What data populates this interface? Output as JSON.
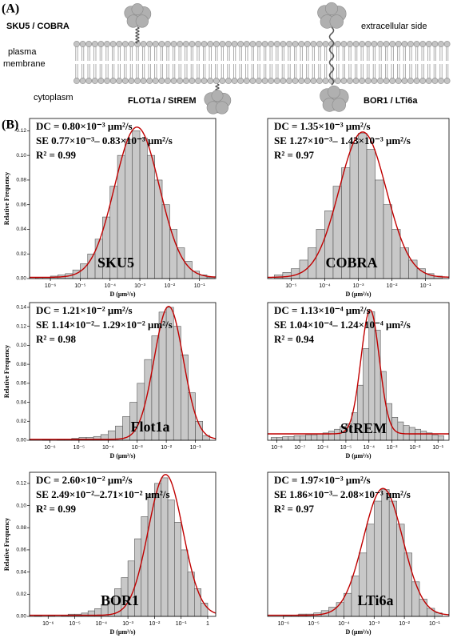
{
  "diagram": {
    "panel_label": "(A)",
    "protein_1": "SKU5 / COBRA",
    "outside": "extracellular side",
    "membrane": [
      "plasma",
      "membrane"
    ],
    "inside": "cytoplasm",
    "protein_2": "FLOT1a / StREM",
    "protein_3": "BOR1 / LTi6a"
  },
  "panel_b_label": "(B)",
  "chart_data": [
    {
      "type": "histogram",
      "label": "SKU5",
      "annotations": [
        "DC = 0.80×10⁻³ μm²/s",
        "SE 0.77×10⁻³– 0.83×10⁻³ μm²/s",
        "R² = 0.99"
      ],
      "x_label": "D (μm²/s)",
      "y_label": "Relative Frequency",
      "xscale": "log",
      "color": "#c8c8c8",
      "bins": [
        3.16e-07,
        5.62e-07,
        1e-06,
        1.78e-06,
        3.16e-06,
        5.62e-06,
        1e-05,
        1.78e-05,
        3.16e-05,
        5.62e-05,
        0.0001,
        0.000178,
        0.000316,
        0.000562,
        0.001,
        0.00178,
        0.00316,
        0.00562,
        0.01,
        0.0178,
        0.0316,
        0.0562,
        0.1,
        0.178,
        0.316
      ],
      "values": [
        0.001,
        0.001,
        0.002,
        0.003,
        0.004,
        0.007,
        0.012,
        0.02,
        0.032,
        0.05,
        0.075,
        0.1,
        0.113,
        0.12,
        0.114,
        0.1,
        0.08,
        0.06,
        0.04,
        0.025,
        0.014,
        0.006,
        0.003,
        0.001
      ],
      "fit_curve": {
        "color": "#c00000",
        "peak": 0.122,
        "center": 0.0008,
        "width": 0.75,
        "baseline": 0.001
      },
      "xlim": [
        2e-07,
        0.35
      ],
      "ylim": [
        0,
        0.13
      ],
      "xticks": [
        {
          "value": 1e-06,
          "label": "10⁻⁶"
        },
        {
          "value": 1e-05,
          "label": "10⁻⁵"
        },
        {
          "value": 0.0001,
          "label": "10⁻⁴"
        },
        {
          "value": 0.001,
          "label": "10⁻³"
        },
        {
          "value": 0.01,
          "label": "10⁻²"
        },
        {
          "value": 0.1,
          "label": "10⁻¹"
        }
      ],
      "yticks": [
        {
          "value": 0,
          "label": "0.00"
        },
        0.02,
        0.04,
        0.06,
        0.08,
        {
          "value": 0.1,
          "label": "0.10"
        },
        0.12
      ]
    },
    {
      "type": "histogram",
      "label": "COBRA",
      "annotations": [
        "DC = 1.35×10⁻³ μm²/s",
        "SE 1.27×10⁻³– 1.43×10⁻³ μm²/s",
        "R² = 0.97"
      ],
      "x_label": "D (μm²/s)",
      "xscale": "log",
      "color": "#c8c8c8",
      "bins": [
        3.16e-06,
        5.62e-06,
        1e-05,
        1.78e-05,
        3.16e-05,
        5.62e-05,
        0.0001,
        0.000178,
        0.000316,
        0.000562,
        0.001,
        0.00178,
        0.00316,
        0.00562,
        0.01,
        0.0178,
        0.0316,
        0.0562,
        0.1,
        0.178,
        0.316
      ],
      "values": [
        0.003,
        0.005,
        0.008,
        0.015,
        0.025,
        0.04,
        0.055,
        0.075,
        0.09,
        0.11,
        0.118,
        0.105,
        0.08,
        0.06,
        0.04,
        0.025,
        0.015,
        0.008,
        0.004,
        0.002
      ],
      "fit_curve": {
        "color": "#c00000",
        "peak": 0.118,
        "center": 0.00135,
        "width": 0.7,
        "baseline": 0.001
      },
      "xlim": [
        2e-06,
        0.5
      ],
      "ylim": [
        0,
        0.13
      ],
      "xticks": [
        {
          "value": 1e-05,
          "label": "10⁻⁵"
        },
        {
          "value": 0.0001,
          "label": "10⁻⁴"
        },
        {
          "value": 0.001,
          "label": "10⁻³"
        },
        {
          "value": 0.01,
          "label": "10⁻²"
        },
        {
          "value": 0.1,
          "label": "10⁻¹"
        }
      ]
    },
    {
      "type": "histogram",
      "label": "Flot1a",
      "annotations": [
        "DC = 1.21×10⁻² μm²/s",
        "SE 1.14×10⁻²– 1.29×10⁻² μm²/s",
        "R² = 0.98"
      ],
      "x_label": "D (μm²/s)",
      "y_label": "Relative Frequency",
      "xscale": "log",
      "color": "#c8c8c8",
      "bins": [
        3.16e-07,
        5.62e-07,
        1e-06,
        1.78e-06,
        3.16e-06,
        5.62e-06,
        1e-05,
        1.78e-05,
        3.16e-05,
        5.62e-05,
        0.0001,
        0.000178,
        0.000316,
        0.000562,
        0.001,
        0.00178,
        0.00316,
        0.00562,
        0.01,
        0.0178,
        0.0316,
        0.0562,
        0.1,
        0.178,
        0.316
      ],
      "values": [
        0,
        0.001,
        0,
        0.001,
        0.001,
        0.002,
        0.003,
        0.003,
        0.004,
        0.006,
        0.01,
        0.015,
        0.025,
        0.04,
        0.06,
        0.085,
        0.11,
        0.135,
        0.14,
        0.12,
        0.09,
        0.05,
        0.02,
        0.005
      ],
      "fit_curve": {
        "color": "#c00000",
        "peak": 0.14,
        "center": 0.0121,
        "width": 0.5,
        "baseline": 0.001
      },
      "xlim": [
        2e-07,
        0.5
      ],
      "ylim": [
        0,
        0.145
      ],
      "xticks": [
        {
          "value": 1e-06,
          "label": "10⁻⁶"
        },
        {
          "value": 1e-05,
          "label": "10⁻⁵"
        },
        {
          "value": 0.0001,
          "label": "10⁻⁴"
        },
        {
          "value": 0.001,
          "label": "10⁻³"
        },
        {
          "value": 0.01,
          "label": "10⁻²"
        },
        {
          "value": 0.1,
          "label": "10⁻¹"
        }
      ],
      "yticks": [
        {
          "value": 0,
          "label": "0.00"
        },
        0.02,
        0.04,
        0.06,
        0.08,
        {
          "value": 0.1,
          "label": "0.10"
        },
        0.12,
        0.14
      ]
    },
    {
      "type": "histogram",
      "label": "StREM",
      "annotations": [
        "DC = 1.13×10⁻⁴ μm²/s",
        "SE 1.04×10⁻⁴– 1.24×10⁻⁴ μm²/s",
        "R² = 0.94"
      ],
      "x_label": "D (μm²/s)",
      "xscale": "log",
      "color": "#c8c8c8",
      "bins": [
        5.62e-09,
        1e-08,
        1.78e-08,
        3.16e-08,
        5.62e-08,
        1e-07,
        1.78e-07,
        3.16e-07,
        5.62e-07,
        1e-06,
        1.78e-06,
        3.16e-06,
        5.62e-06,
        1e-05,
        1.78e-05,
        3.16e-05,
        5.62e-05,
        0.0001,
        0.000178,
        0.000316,
        0.000562,
        0.001,
        0.00178,
        0.00316,
        0.00562,
        0.01,
        0.0178,
        0.0316,
        0.0562,
        0.1,
        0.178
      ],
      "values": [
        0.003,
        0.003,
        0.004,
        0.004,
        0.005,
        0.005,
        0.006,
        0.006,
        0.007,
        0.008,
        0.01,
        0.012,
        0.015,
        0.018,
        0.03,
        0.06,
        0.1,
        0.14,
        0.12,
        0.075,
        0.04,
        0.025,
        0.02,
        0.016,
        0.014,
        0.012,
        0.01,
        0.008,
        0.006,
        0.005
      ],
      "fit_curve": {
        "color": "#c00000",
        "peak": 0.135,
        "center": 0.000113,
        "width": 0.4,
        "baseline": 0.007
      },
      "xlim": [
        4e-09,
        0.3
      ],
      "ylim": [
        0,
        0.15
      ],
      "xticks": [
        {
          "value": 1e-08,
          "label": "10⁻⁸"
        },
        {
          "value": 1e-07,
          "label": "10⁻⁷"
        },
        {
          "value": 1e-06,
          "label": "10⁻⁶"
        },
        {
          "value": 1e-05,
          "label": "10⁻⁵"
        },
        {
          "value": 0.0001,
          "label": "10⁻⁴"
        },
        {
          "value": 0.001,
          "label": "10⁻³"
        },
        {
          "value": 0.01,
          "label": "10⁻²"
        },
        {
          "value": 0.1,
          "label": "10⁻¹"
        }
      ]
    },
    {
      "type": "histogram",
      "label": "BOR1",
      "annotations": [
        "DC = 2.60×10⁻² μm²/s",
        "SE 2.49×10⁻²–2.71×10⁻² μm²/s",
        "R² = 0.99"
      ],
      "x_label": "D (μm²/s)",
      "y_label": "Relative Frequency",
      "xscale": "log",
      "color": "#c8c8c8",
      "bins": [
        3.16e-07,
        5.62e-07,
        1e-06,
        1.78e-06,
        3.16e-06,
        5.62e-06,
        1e-05,
        1.78e-05,
        3.16e-05,
        5.62e-05,
        0.0001,
        0.000178,
        0.000316,
        0.000562,
        0.001,
        0.00178,
        0.00316,
        0.00562,
        0.01,
        0.0178,
        0.0316,
        0.0562,
        0.1,
        0.178,
        0.316,
        0.562,
        1
      ],
      "values": [
        0.001,
        0,
        0.001,
        0,
        0.001,
        0.002,
        0.002,
        0.003,
        0.005,
        0.007,
        0.01,
        0.016,
        0.025,
        0.035,
        0.05,
        0.07,
        0.09,
        0.11,
        0.12,
        0.125,
        0.105,
        0.085,
        0.06,
        0.04,
        0.025,
        0.012
      ],
      "fit_curve": {
        "color": "#c00000",
        "peak": 0.127,
        "center": 0.026,
        "width": 0.65,
        "baseline": 0.001
      },
      "xlim": [
        2e-07,
        2
      ],
      "ylim": [
        0,
        0.13
      ],
      "xticks": [
        {
          "value": 1e-06,
          "label": "10⁻⁶"
        },
        {
          "value": 1e-05,
          "label": "10⁻⁵"
        },
        {
          "value": 0.0001,
          "label": "10⁻⁴"
        },
        {
          "value": 0.001,
          "label": "10⁻³"
        },
        {
          "value": 0.01,
          "label": "10⁻²"
        },
        {
          "value": 0.1,
          "label": "10⁻¹"
        },
        1
      ],
      "yticks": [
        {
          "value": 0,
          "label": "0.00"
        },
        0.02,
        0.04,
        0.06,
        0.08,
        {
          "value": 0.1,
          "label": "0.10"
        },
        0.12
      ]
    },
    {
      "type": "histogram",
      "label": "LTi6a",
      "annotations": [
        "DC = 1.97×10⁻³ μm²/s",
        "SE 1.86×10⁻³– 2.08×10⁻³ μm²/s",
        "R² = 0.97"
      ],
      "x_label": "D (μm²/s)",
      "xscale": "log",
      "color": "#c8c8c8",
      "bins": [
        5.62e-07,
        1e-06,
        1.78e-06,
        3.16e-06,
        5.62e-06,
        1e-05,
        1.78e-05,
        3.16e-05,
        5.62e-05,
        0.0001,
        0.000178,
        0.000316,
        0.000562,
        0.001,
        0.00178,
        0.00316,
        0.00562,
        0.01,
        0.0178,
        0.0316,
        0.0562,
        0.1,
        0.178
      ],
      "values": [
        0,
        0.001,
        0.001,
        0.002,
        0.002,
        0.003,
        0.005,
        0.008,
        0.012,
        0.02,
        0.035,
        0.055,
        0.08,
        0.1,
        0.11,
        0.1,
        0.08,
        0.055,
        0.03,
        0.015,
        0.007,
        0.003
      ],
      "fit_curve": {
        "color": "#c00000",
        "peak": 0.11,
        "center": 0.00197,
        "width": 0.65,
        "baseline": 0.001
      },
      "xlim": [
        3e-07,
        0.3
      ],
      "ylim": [
        0,
        0.125
      ],
      "xticks": [
        {
          "value": 1e-06,
          "label": "10⁻⁶"
        },
        {
          "value": 1e-05,
          "label": "10⁻⁵"
        },
        {
          "value": 0.0001,
          "label": "10⁻⁴"
        },
        {
          "value": 0.001,
          "label": "10⁻³"
        },
        {
          "value": 0.01,
          "label": "10⁻²"
        },
        {
          "value": 0.1,
          "label": "10⁻¹"
        }
      ]
    }
  ]
}
